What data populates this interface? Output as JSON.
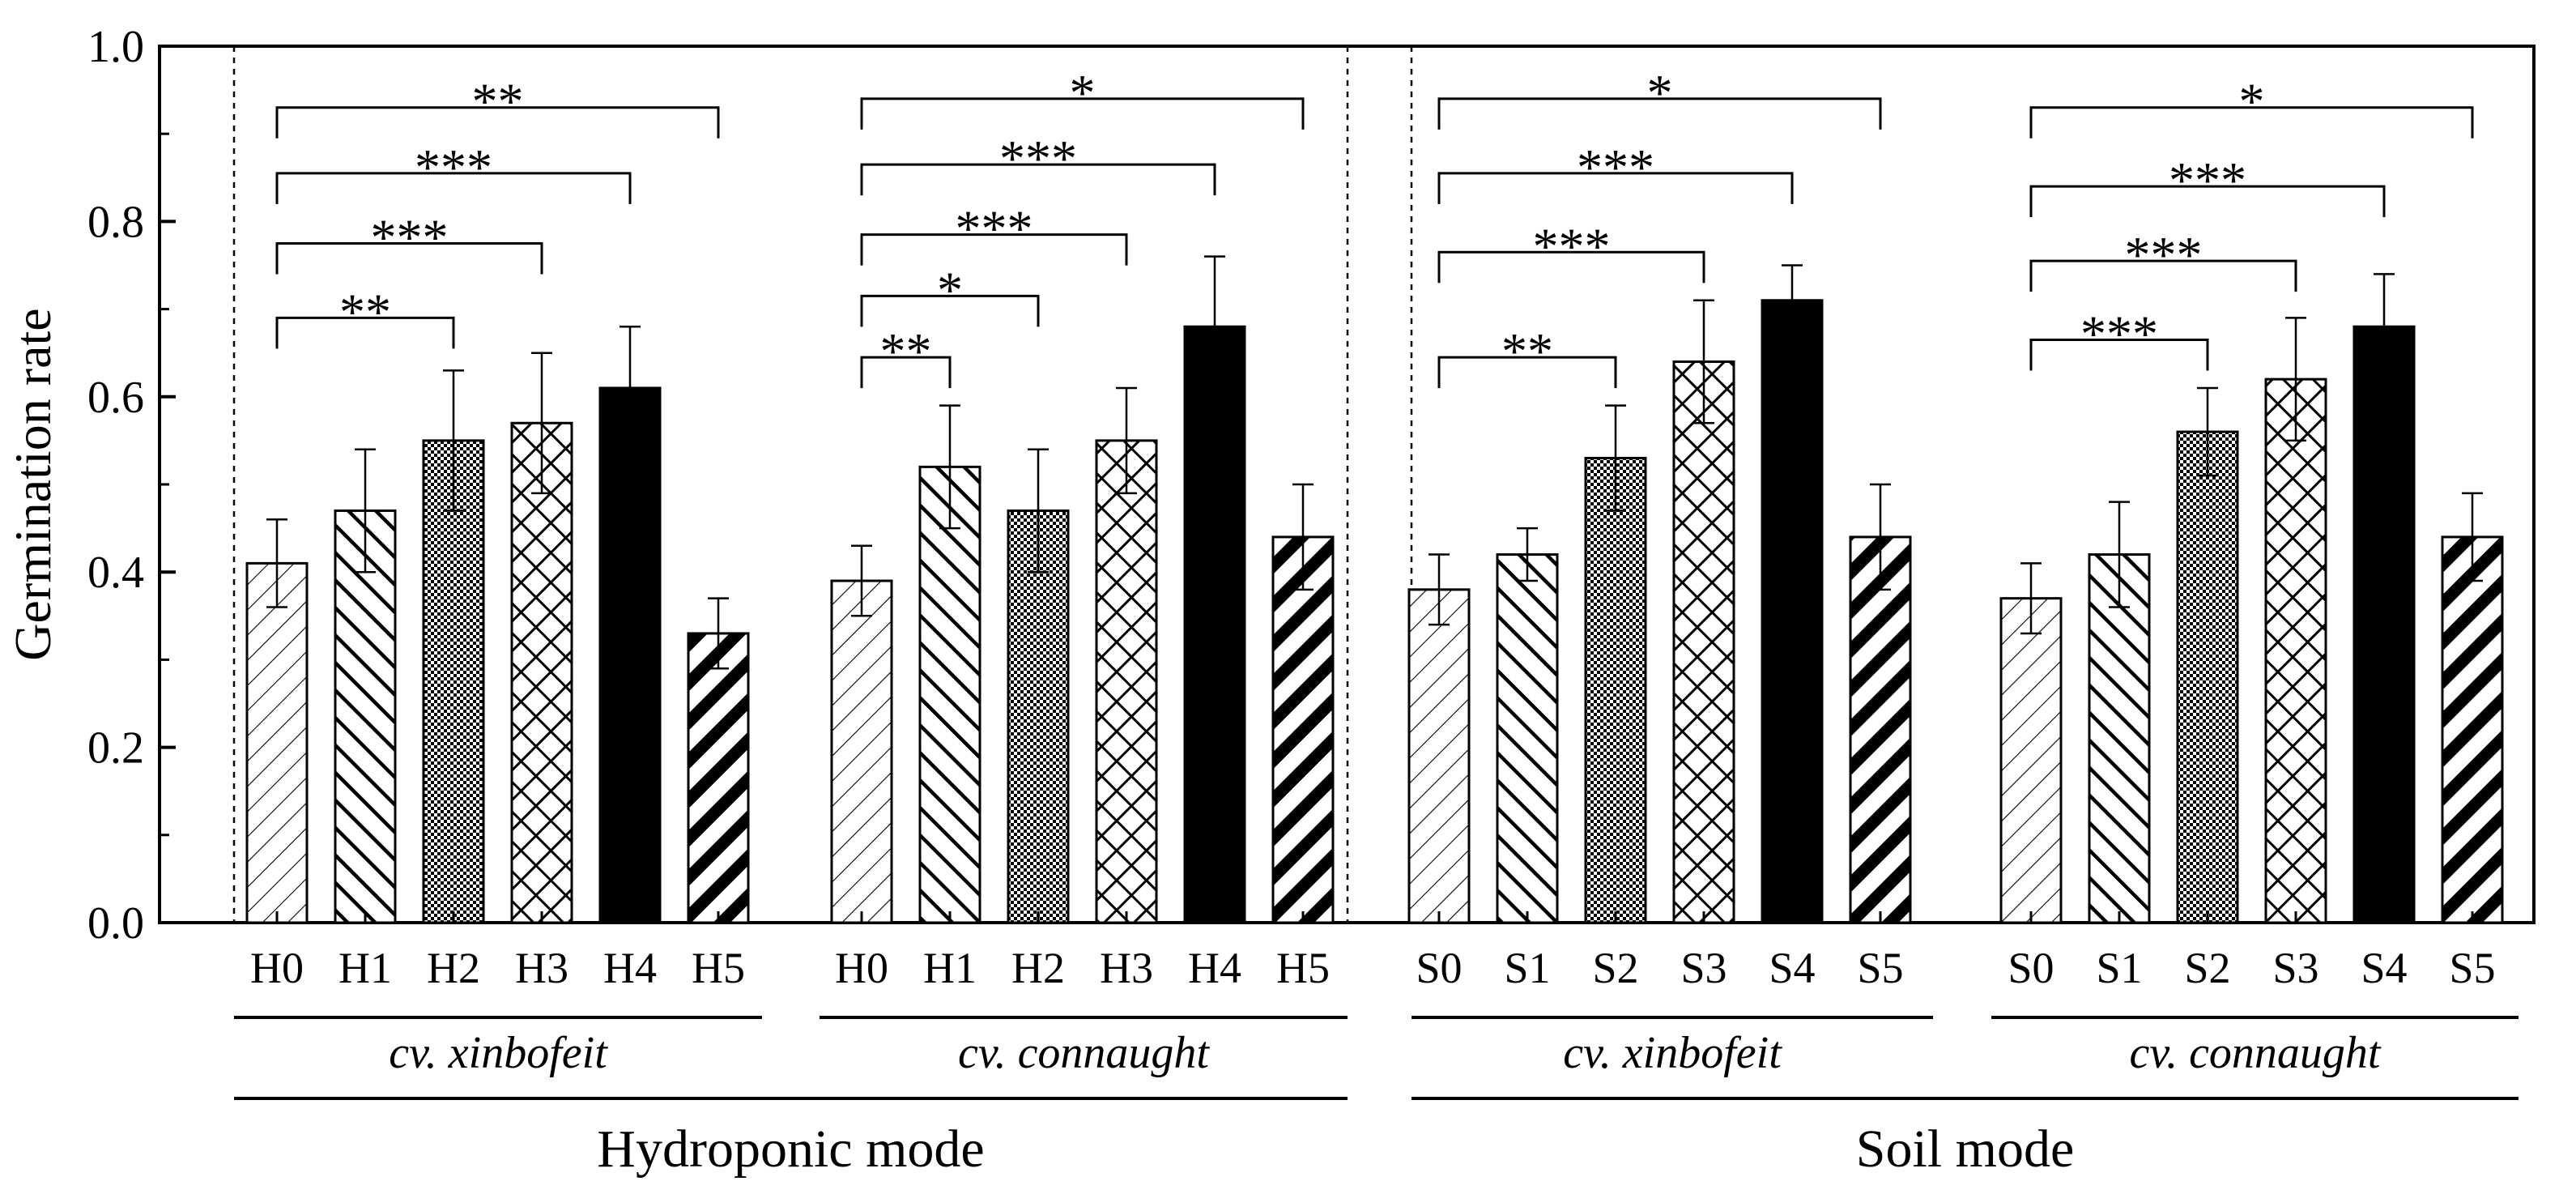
{
  "chart_data": {
    "type": "bar",
    "ylabel": "Germination rate",
    "ylim": [
      0,
      1.0
    ],
    "yticks": [
      "0.0",
      "0.2",
      "0.4",
      "0.6",
      "0.8",
      "1.0"
    ],
    "ytick_values": [
      0,
      0.2,
      0.4,
      0.6,
      0.8,
      1.0
    ],
    "patterns": [
      "diag-thin",
      "diag-back",
      "checker",
      "crosshatch",
      "solid",
      "diag-thick"
    ],
    "modes": [
      {
        "name": "Hydroponic mode",
        "cultivars": [
          {
            "name": "cv. xinbofeit",
            "categories": [
              "H0",
              "H1",
              "H2",
              "H3",
              "H4",
              "H5"
            ],
            "values": [
              0.41,
              0.47,
              0.55,
              0.57,
              0.61,
              0.33
            ],
            "errors": [
              0.05,
              0.07,
              0.08,
              0.08,
              0.07,
              0.04
            ],
            "brackets": [
              {
                "from": 0,
                "to": 5,
                "label": "**",
                "y": 0.93
              },
              {
                "from": 0,
                "to": 4,
                "label": "***",
                "y": 0.855
              },
              {
                "from": 0,
                "to": 3,
                "label": "***",
                "y": 0.775
              },
              {
                "from": 0,
                "to": 2,
                "label": "**",
                "y": 0.69
              }
            ]
          },
          {
            "name": "cv. connaught",
            "categories": [
              "H0",
              "H1",
              "H2",
              "H3",
              "H4",
              "H5"
            ],
            "values": [
              0.39,
              0.52,
              0.47,
              0.55,
              0.68,
              0.44
            ],
            "errors": [
              0.04,
              0.07,
              0.07,
              0.06,
              0.08,
              0.06
            ],
            "brackets": [
              {
                "from": 0,
                "to": 5,
                "label": "*",
                "y": 0.94
              },
              {
                "from": 0,
                "to": 4,
                "label": "***",
                "y": 0.865
              },
              {
                "from": 0,
                "to": 3,
                "label": "***",
                "y": 0.785
              },
              {
                "from": 0,
                "to": 2,
                "label": "*",
                "y": 0.715
              },
              {
                "from": 0,
                "to": 1,
                "label": "**",
                "y": 0.645
              }
            ]
          }
        ]
      },
      {
        "name": "Soil mode",
        "cultivars": [
          {
            "name": "cv. xinbofeit",
            "categories": [
              "S0",
              "S1",
              "S2",
              "S3",
              "S4",
              "S5"
            ],
            "values": [
              0.38,
              0.42,
              0.53,
              0.64,
              0.71,
              0.44
            ],
            "errors": [
              0.04,
              0.03,
              0.06,
              0.07,
              0.04,
              0.06
            ],
            "brackets": [
              {
                "from": 0,
                "to": 5,
                "label": "*",
                "y": 0.94
              },
              {
                "from": 0,
                "to": 4,
                "label": "***",
                "y": 0.855
              },
              {
                "from": 0,
                "to": 3,
                "label": "***",
                "y": 0.765
              },
              {
                "from": 0,
                "to": 2,
                "label": "**",
                "y": 0.645
              }
            ]
          },
          {
            "name": "cv. connaught",
            "categories": [
              "S0",
              "S1",
              "S2",
              "S3",
              "S4",
              "S5"
            ],
            "values": [
              0.37,
              0.42,
              0.56,
              0.62,
              0.68,
              0.44
            ],
            "errors": [
              0.04,
              0.06,
              0.05,
              0.07,
              0.06,
              0.05
            ],
            "brackets": [
              {
                "from": 0,
                "to": 5,
                "label": "*",
                "y": 0.93
              },
              {
                "from": 0,
                "to": 4,
                "label": "***",
                "y": 0.84
              },
              {
                "from": 0,
                "to": 3,
                "label": "***",
                "y": 0.755
              },
              {
                "from": 0,
                "to": 2,
                "label": "***",
                "y": 0.665
              }
            ]
          }
        ]
      }
    ]
  }
}
